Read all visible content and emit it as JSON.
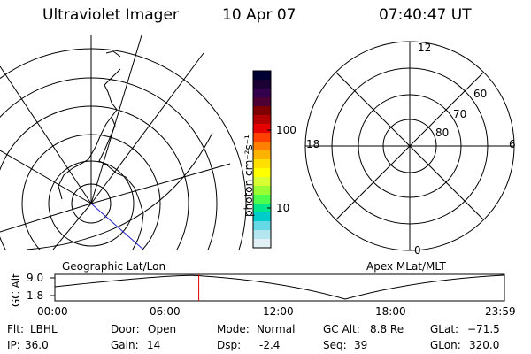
{
  "header": {
    "instrument": "Ultraviolet Imager",
    "date": "10 Apr 07",
    "time": "07:40:47 UT"
  },
  "colorbar": {
    "unit_label": "photon cm⁻²s⁻¹",
    "ticks": [
      "100",
      "10"
    ],
    "colors": [
      "#000033",
      "#1a0033",
      "#33004d",
      "#4d0033",
      "#800000",
      "#b30000",
      "#e60000",
      "#ff4000",
      "#ff8000",
      "#ffb300",
      "#ffe000",
      "#ffff00",
      "#d9ff33",
      "#99ff33",
      "#4dff4d",
      "#00e68a",
      "#00cccc",
      "#66d9e6",
      "#b3e6ee",
      "#e0f0f4"
    ]
  },
  "left_map": {
    "label": "Geographic Lat/Lon"
  },
  "right_map": {
    "label": "Apex MLat/MLT",
    "mlt_labels": {
      "top": "12",
      "left": "18",
      "right": "6",
      "bottom": "0"
    },
    "lat_labels": [
      "60",
      "70",
      "80"
    ]
  },
  "altitude_plot": {
    "y_axis_label": "GC Alt",
    "y_ticks": [
      "9.0",
      "1.8"
    ],
    "x_ticks": [
      "00:00",
      "06:00",
      "12:00",
      "18:00",
      "23:59"
    ],
    "marker_time_fraction": 0.32
  },
  "info": {
    "filter_label": "Flt:",
    "filter_value": "LBHL",
    "door_label": "Door:",
    "door_value": "Open",
    "mode_label": "Mode:",
    "mode_value": "Normal",
    "gcalt_label": "GC Alt:",
    "gcalt_value": "8.8 Re",
    "glat_label": "GLat:",
    "glat_value": "−71.5",
    "ip_label": "IP:",
    "ip_value": "36.0",
    "gain_label": "Gain:",
    "gain_value": "14",
    "dsp_label": "Dsp:",
    "dsp_value": "-2.4",
    "seq_label": "Seq:",
    "seq_value": "39",
    "glon_label": "GLon:",
    "glon_value": "320.0"
  }
}
